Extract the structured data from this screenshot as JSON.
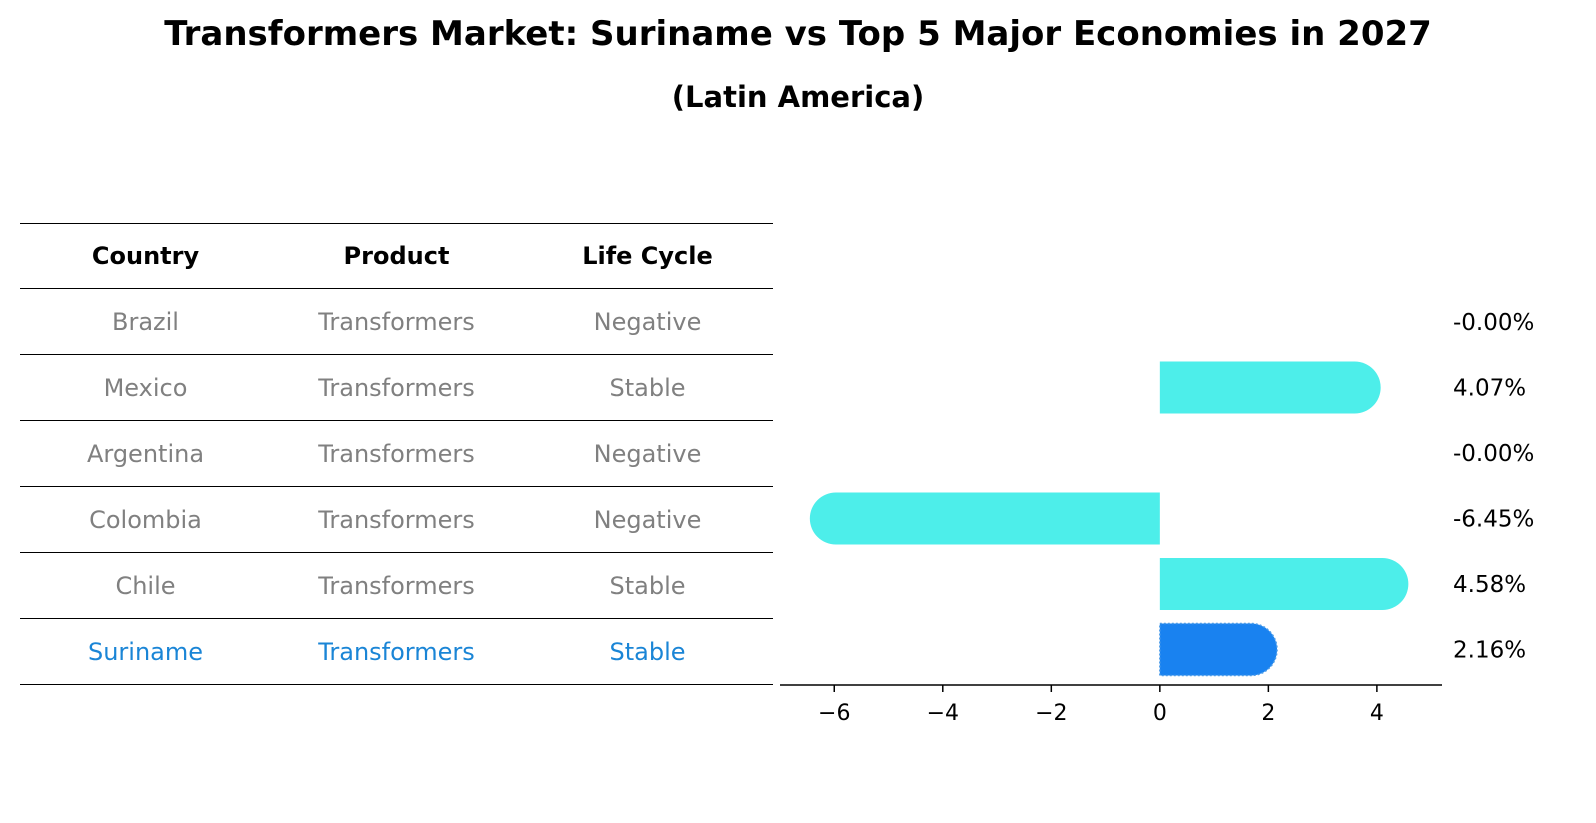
{
  "title": "Transformers Market: Suriname vs Top 5 Major Economies in 2027",
  "subtitle": "(Latin America)",
  "table": {
    "headers": [
      "Country",
      "Product",
      "Life Cycle"
    ],
    "rows": [
      {
        "country": "Brazil",
        "product": "Transformers",
        "life_cycle": "Negative"
      },
      {
        "country": "Mexico",
        "product": "Transformers",
        "life_cycle": "Stable"
      },
      {
        "country": "Argentina",
        "product": "Transformers",
        "life_cycle": "Negative"
      },
      {
        "country": "Colombia",
        "product": "Transformers",
        "life_cycle": "Negative"
      },
      {
        "country": "Chile",
        "product": "Transformers",
        "life_cycle": "Stable"
      },
      {
        "country": "Suriname",
        "product": "Transformers",
        "life_cycle": "Stable"
      }
    ],
    "highlight_color": "#1a85d6",
    "text_color": "#808080"
  },
  "chart_data": {
    "type": "bar",
    "orientation": "horizontal",
    "categories": [
      "Brazil",
      "Mexico",
      "Argentina",
      "Colombia",
      "Chile",
      "Suriname"
    ],
    "values": [
      -0.0,
      4.07,
      -0.0,
      -6.45,
      4.58,
      2.16
    ],
    "value_labels": [
      "-0.00%",
      "4.07%",
      "-0.00%",
      "-6.45%",
      "4.58%",
      "2.16%"
    ],
    "xlim": [
      -7,
      5.2
    ],
    "xticks": [
      -6,
      -4,
      -2,
      0,
      2,
      4
    ],
    "xtick_labels": [
      "−6",
      "−4",
      "−2",
      "0",
      "2",
      "4"
    ],
    "colors": {
      "default": "#4deeea",
      "highlight": "#1982f0"
    },
    "highlight_category": "Suriname"
  }
}
